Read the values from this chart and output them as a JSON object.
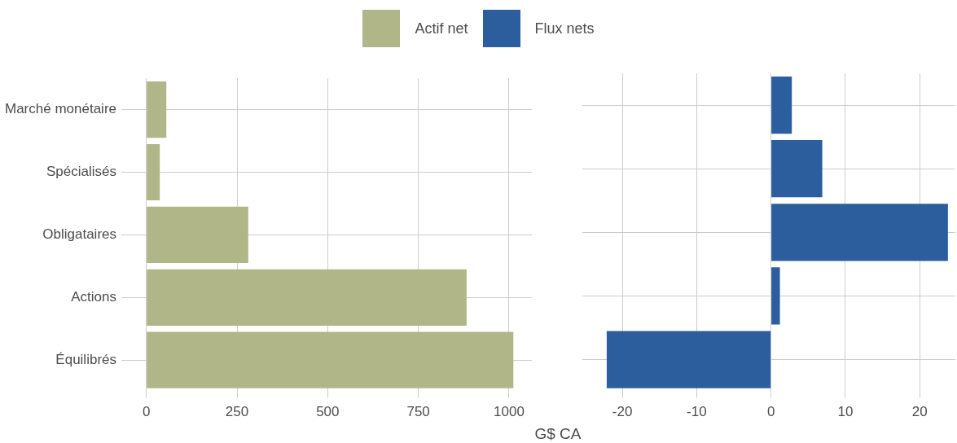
{
  "chart_data": [
    {
      "type": "bar",
      "orientation": "horizontal",
      "categories": [
        "Marché monétaire",
        "Spécialisés",
        "Obligataires",
        "Actions",
        "Équilibrés"
      ],
      "series": [
        {
          "name": "Actif net",
          "color": "#b0b687",
          "values": [
            55,
            37,
            281,
            883,
            1012
          ]
        }
      ],
      "xlim": [
        -51,
        1063
      ],
      "xticks": [
        0,
        250,
        500,
        750,
        1000
      ],
      "grid": true,
      "legend": "top"
    },
    {
      "type": "bar",
      "orientation": "horizontal",
      "series": [
        {
          "name": "Flux nets",
          "color": "#2c5e9e",
          "values": [
            2.8,
            6.9,
            23.8,
            1.2,
            -22.1
          ]
        }
      ],
      "xlim": [
        -24.5,
        24.8
      ],
      "xticks": [
        -20,
        -10,
        0,
        10,
        20
      ],
      "grid": true,
      "legend": "top",
      "tick_labels": "x",
      "xlabel": "G$ CA"
    }
  ]
}
